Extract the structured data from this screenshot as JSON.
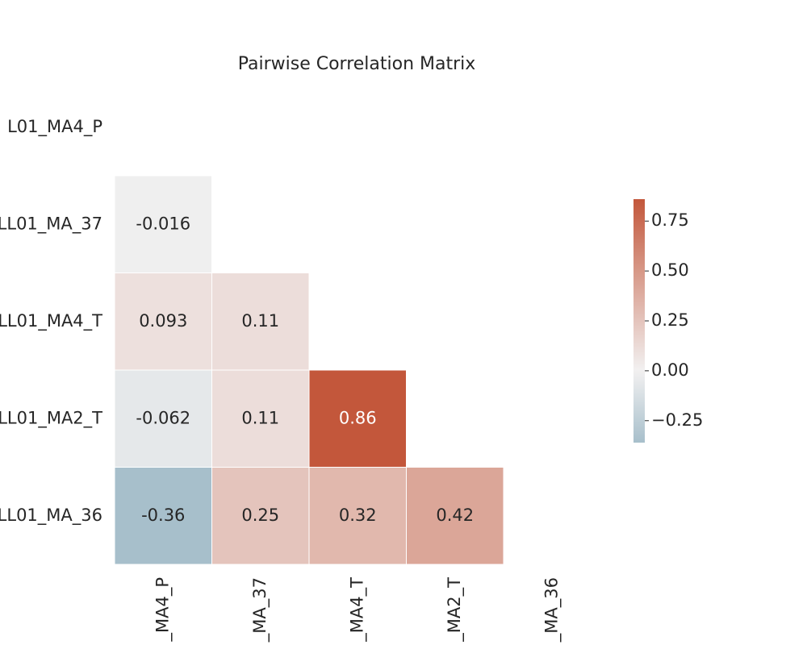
{
  "chart_data": {
    "type": "heatmap",
    "title": "Pairwise Correlation Matrix",
    "row_labels": [
      "L01_MA4_P",
      "LL01_MA_37",
      "LL01_MA4_T",
      "LL01_MA2_T",
      "LL01_MA_36"
    ],
    "col_labels": [
      "_MA4_P",
      "_MA_37",
      "_MA4_T",
      "_MA2_T",
      "_MA_36"
    ],
    "values": [
      [
        null,
        null,
        null,
        null,
        null
      ],
      [
        -0.016,
        null,
        null,
        null,
        null
      ],
      [
        0.093,
        0.11,
        null,
        null,
        null
      ],
      [
        -0.062,
        0.11,
        0.86,
        null,
        null
      ],
      [
        -0.36,
        0.25,
        0.32,
        0.42,
        null
      ]
    ],
    "clim": [
      -0.36,
      0.86
    ],
    "cticks": [
      {
        "value": -0.25,
        "label": "−0.25"
      },
      {
        "value": 0,
        "label": "0.00"
      },
      {
        "value": 0.25,
        "label": "0.25"
      },
      {
        "value": 0.5,
        "label": "0.50"
      },
      {
        "value": 0.75,
        "label": "0.75"
      }
    ],
    "cmap": {
      "low": "#a7bfcb",
      "mid": "#f2f1f1",
      "high": "#c3573b",
      "center": 0
    }
  }
}
